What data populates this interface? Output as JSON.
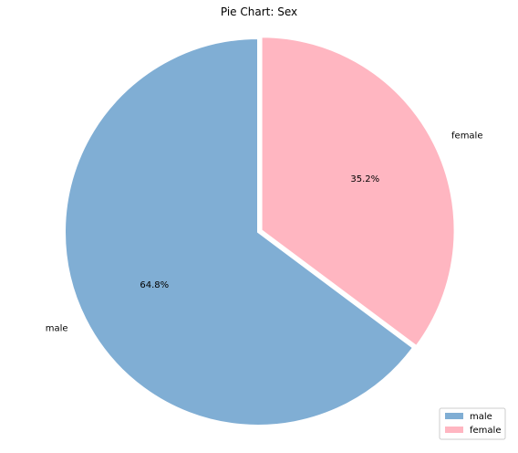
{
  "chart_data": {
    "type": "pie",
    "title": "Pie Chart: Sex",
    "categories": [
      "male",
      "female"
    ],
    "values": [
      64.8,
      35.2
    ],
    "percent_labels": [
      "64.8%",
      "35.2%"
    ],
    "colors": [
      "#80aed4",
      "#ffb6c1"
    ],
    "exploded": [
      "female"
    ],
    "start_angle_deg": 90,
    "direction": "counterclockwise",
    "legend": {
      "placement": "bottom-right",
      "entries": [
        "male",
        "female"
      ]
    }
  }
}
